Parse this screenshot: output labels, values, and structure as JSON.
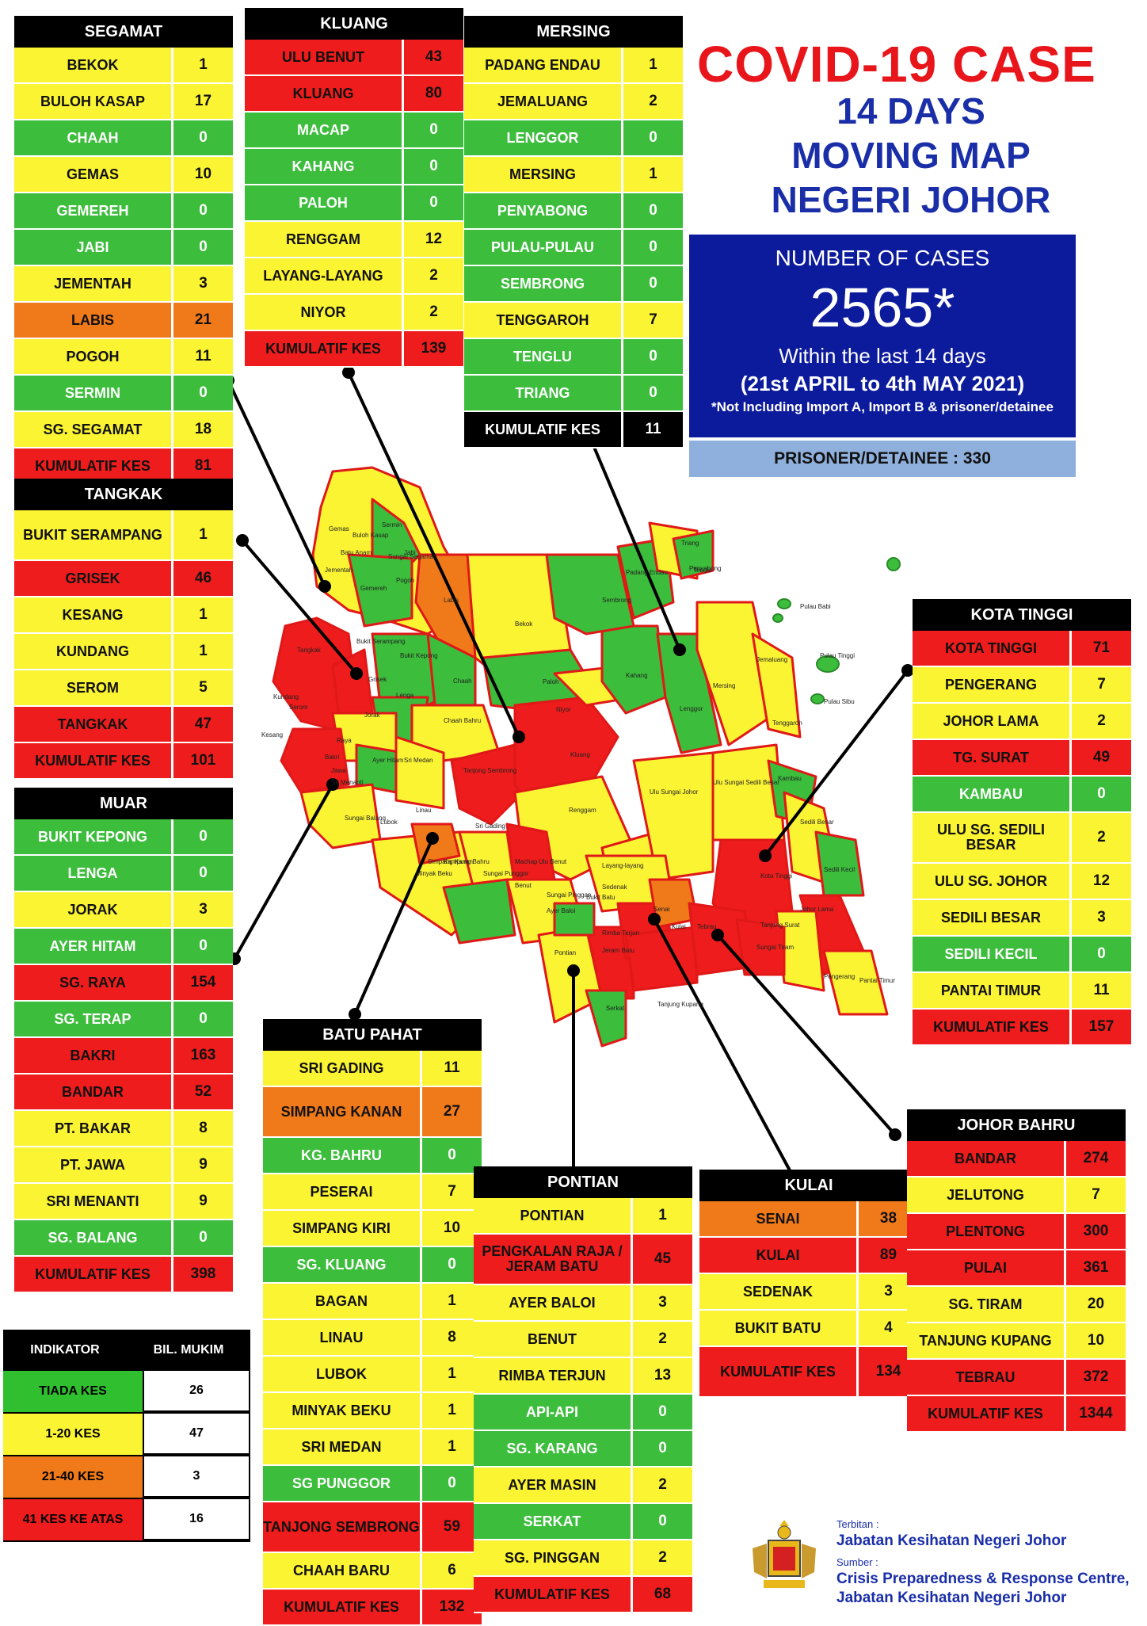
{
  "title": {
    "line1": "COVID-19 CASE",
    "line2": "14 DAYS",
    "line3": "MOVING MAP",
    "line4": "NEGERI JOHOR"
  },
  "summary": {
    "label": "NUMBER OF CASES",
    "total": "2565*",
    "within": "Within the last 14 days",
    "range": "(21st APRIL to 4th MAY 2021)",
    "note": "*Not Including Import A, Import B & prisoner/detainee",
    "prisoner": "PRISONER/DETAINEE : 330"
  },
  "colors": {
    "green": "#3cbd3c",
    "yellow": "#fbf433",
    "orange": "#f07a1a",
    "red": "#ee1c1c",
    "title_red": "#e8151b",
    "title_blue": "#1a2ea8",
    "box_blue": "#0c1a9c"
  },
  "districts": {
    "segamat": {
      "name": "SEGAMAT",
      "rows": [
        {
          "name": "BEKOK",
          "value": "1",
          "level": "yellow"
        },
        {
          "name": "BULOH KASAP",
          "value": "17",
          "level": "yellow"
        },
        {
          "name": "CHAAH",
          "value": "0",
          "level": "green"
        },
        {
          "name": "GEMAS",
          "value": "10",
          "level": "yellow"
        },
        {
          "name": "GEMEREH",
          "value": "0",
          "level": "green"
        },
        {
          "name": "JABI",
          "value": "0",
          "level": "green"
        },
        {
          "name": "JEMENTAH",
          "value": "3",
          "level": "yellow"
        },
        {
          "name": "LABIS",
          "value": "21",
          "level": "orange"
        },
        {
          "name": "POGOH",
          "value": "11",
          "level": "yellow"
        },
        {
          "name": "SERMIN",
          "value": "0",
          "level": "green"
        },
        {
          "name": "SG. SEGAMAT",
          "value": "18",
          "level": "yellow"
        },
        {
          "name": "KUMULATIF KES",
          "value": "81",
          "level": "red"
        }
      ]
    },
    "kluang": {
      "name": "KLUANG",
      "rows": [
        {
          "name": "ULU BENUT",
          "value": "43",
          "level": "red"
        },
        {
          "name": "KLUANG",
          "value": "80",
          "level": "red"
        },
        {
          "name": "MACAP",
          "value": "0",
          "level": "green"
        },
        {
          "name": "KAHANG",
          "value": "0",
          "level": "green"
        },
        {
          "name": "PALOH",
          "value": "0",
          "level": "green"
        },
        {
          "name": "RENGGAM",
          "value": "12",
          "level": "yellow"
        },
        {
          "name": "LAYANG-LAYANG",
          "value": "2",
          "level": "yellow"
        },
        {
          "name": "NIYOR",
          "value": "2",
          "level": "yellow"
        },
        {
          "name": "KUMULATIF KES",
          "value": "139",
          "level": "red"
        }
      ]
    },
    "mersing": {
      "name": "MERSING",
      "rows": [
        {
          "name": "PADANG ENDAU",
          "value": "1",
          "level": "yellow"
        },
        {
          "name": "JEMALUANG",
          "value": "2",
          "level": "yellow"
        },
        {
          "name": "LENGGOR",
          "value": "0",
          "level": "green"
        },
        {
          "name": "MERSING",
          "value": "1",
          "level": "yellow"
        },
        {
          "name": "PENYABONG",
          "value": "0",
          "level": "green"
        },
        {
          "name": "PULAU-PULAU",
          "value": "0",
          "level": "green"
        },
        {
          "name": "SEMBRONG",
          "value": "0",
          "level": "green"
        },
        {
          "name": "TENGGAROH",
          "value": "7",
          "level": "yellow"
        },
        {
          "name": "TENGLU",
          "value": "0",
          "level": "green"
        },
        {
          "name": "TRIANG",
          "value": "0",
          "level": "green"
        },
        {
          "name": "KUMULATIF KES",
          "value": "11",
          "level": "black"
        }
      ]
    },
    "tangkak": {
      "name": "TANGKAK",
      "rows": [
        {
          "name": "BUKIT SERAMPANG",
          "value": "1",
          "level": "yellow",
          "tall": true
        },
        {
          "name": "GRISEK",
          "value": "46",
          "level": "red"
        },
        {
          "name": "KESANG",
          "value": "1",
          "level": "yellow"
        },
        {
          "name": "KUNDANG",
          "value": "1",
          "level": "yellow"
        },
        {
          "name": "SEROM",
          "value": "5",
          "level": "yellow"
        },
        {
          "name": "TANGKAK",
          "value": "47",
          "level": "red"
        },
        {
          "name": "KUMULATIF KES",
          "value": "101",
          "level": "red"
        }
      ]
    },
    "muar": {
      "name": "MUAR",
      "rows": [
        {
          "name": "BUKIT KEPONG",
          "value": "0",
          "level": "green"
        },
        {
          "name": "LENGA",
          "value": "0",
          "level": "green"
        },
        {
          "name": "JORAK",
          "value": "3",
          "level": "yellow"
        },
        {
          "name": "AYER HITAM",
          "value": "0",
          "level": "green"
        },
        {
          "name": "SG. RAYA",
          "value": "154",
          "level": "red"
        },
        {
          "name": "SG. TERAP",
          "value": "0",
          "level": "green"
        },
        {
          "name": "BAKRI",
          "value": "163",
          "level": "red"
        },
        {
          "name": "BANDAR",
          "value": "52",
          "level": "red"
        },
        {
          "name": "PT. BAKAR",
          "value": "8",
          "level": "yellow"
        },
        {
          "name": "PT. JAWA",
          "value": "9",
          "level": "yellow"
        },
        {
          "name": "SRI MENANTI",
          "value": "9",
          "level": "yellow"
        },
        {
          "name": "SG. BALANG",
          "value": "0",
          "level": "green"
        },
        {
          "name": "KUMULATIF KES",
          "value": "398",
          "level": "red"
        }
      ]
    },
    "kota_tinggi": {
      "name": "KOTA TINGGI",
      "rows": [
        {
          "name": "KOTA TINGGI",
          "value": "71",
          "level": "red"
        },
        {
          "name": "PENGERANG",
          "value": "7",
          "level": "yellow"
        },
        {
          "name": "JOHOR LAMA",
          "value": "2",
          "level": "yellow"
        },
        {
          "name": "TG. SURAT",
          "value": "49",
          "level": "red"
        },
        {
          "name": "KAMBAU",
          "value": "0",
          "level": "green"
        },
        {
          "name": "ULU SG. SEDILI BESAR",
          "value": "2",
          "level": "yellow",
          "tall": true
        },
        {
          "name": "ULU SG. JOHOR",
          "value": "12",
          "level": "yellow"
        },
        {
          "name": "SEDILI BESAR",
          "value": "3",
          "level": "yellow"
        },
        {
          "name": "SEDILI KECIL",
          "value": "0",
          "level": "green"
        },
        {
          "name": "PANTAI TIMUR",
          "value": "11",
          "level": "yellow"
        },
        {
          "name": "KUMULATIF KES",
          "value": "157",
          "level": "red"
        }
      ]
    },
    "batu_pahat": {
      "name": "BATU PAHAT",
      "rows": [
        {
          "name": "SRI GADING",
          "value": "11",
          "level": "yellow"
        },
        {
          "name": "SIMPANG KANAN",
          "value": "27",
          "level": "orange",
          "tall": true
        },
        {
          "name": "KG. BAHRU",
          "value": "0",
          "level": "green"
        },
        {
          "name": "PESERAI",
          "value": "7",
          "level": "yellow"
        },
        {
          "name": "SIMPANG KIRI",
          "value": "10",
          "level": "yellow"
        },
        {
          "name": "SG. KLUANG",
          "value": "0",
          "level": "green"
        },
        {
          "name": "BAGAN",
          "value": "1",
          "level": "yellow"
        },
        {
          "name": "LINAU",
          "value": "8",
          "level": "yellow"
        },
        {
          "name": "LUBOK",
          "value": "1",
          "level": "yellow"
        },
        {
          "name": "MINYAK BEKU",
          "value": "1",
          "level": "yellow"
        },
        {
          "name": "SRI MEDAN",
          "value": "1",
          "level": "yellow"
        },
        {
          "name": "SG PUNGGOR",
          "value": "0",
          "level": "green"
        },
        {
          "name": "TANJONG SEMBRONG",
          "value": "59",
          "level": "red",
          "tall": true
        },
        {
          "name": "CHAAH BARU",
          "value": "6",
          "level": "yellow"
        },
        {
          "name": "KUMULATIF KES",
          "value": "132",
          "level": "red"
        }
      ]
    },
    "pontian": {
      "name": "PONTIAN",
      "rows": [
        {
          "name": "PONTIAN",
          "value": "1",
          "level": "yellow"
        },
        {
          "name": "PENGKALAN RAJA / JERAM BATU",
          "value": "45",
          "level": "red",
          "tall": true
        },
        {
          "name": "AYER BALOI",
          "value": "3",
          "level": "yellow"
        },
        {
          "name": "BENUT",
          "value": "2",
          "level": "yellow"
        },
        {
          "name": "RIMBA TERJUN",
          "value": "13",
          "level": "yellow"
        },
        {
          "name": "API-API",
          "value": "0",
          "level": "green"
        },
        {
          "name": "SG. KARANG",
          "value": "0",
          "level": "green"
        },
        {
          "name": "AYER MASIN",
          "value": "2",
          "level": "yellow"
        },
        {
          "name": "SERKAT",
          "value": "0",
          "level": "green"
        },
        {
          "name": "SG. PINGGAN",
          "value": "2",
          "level": "yellow"
        },
        {
          "name": "KUMULATIF KES",
          "value": "68",
          "level": "red"
        }
      ]
    },
    "kulai": {
      "name": "KULAI",
      "rows": [
        {
          "name": "SENAI",
          "value": "38",
          "level": "orange"
        },
        {
          "name": "KULAI",
          "value": "89",
          "level": "red"
        },
        {
          "name": "SEDENAK",
          "value": "3",
          "level": "yellow"
        },
        {
          "name": "BUKIT BATU",
          "value": "4",
          "level": "yellow"
        },
        {
          "name": "KUMULATIF KES",
          "value": "134",
          "level": "red",
          "tall": true
        }
      ]
    },
    "johor_bahru": {
      "name": "JOHOR BAHRU",
      "rows": [
        {
          "name": "BANDAR",
          "value": "274",
          "level": "red"
        },
        {
          "name": "JELUTONG",
          "value": "7",
          "level": "yellow"
        },
        {
          "name": "PLENTONG",
          "value": "300",
          "level": "red"
        },
        {
          "name": "PULAI",
          "value": "361",
          "level": "red"
        },
        {
          "name": "SG. TIRAM",
          "value": "20",
          "level": "yellow"
        },
        {
          "name": "TANJUNG KUPANG",
          "value": "10",
          "level": "yellow"
        },
        {
          "name": "TEBRAU",
          "value": "372",
          "level": "red"
        },
        {
          "name": "KUMULATIF KES",
          "value": "1344",
          "level": "red"
        }
      ]
    }
  },
  "legend": {
    "col1": "INDIKATOR",
    "col2": "BIL. MUKIM",
    "rows": [
      {
        "label": "TIADA KES",
        "count": "26",
        "level": "green"
      },
      {
        "label": "1-20 KES",
        "count": "47",
        "level": "yellow"
      },
      {
        "label": "21-40 KES",
        "count": "3",
        "level": "orange"
      },
      {
        "label": "41 KES KE ATAS",
        "count": "16",
        "level": "red"
      }
    ]
  },
  "credit": {
    "terbitan_label": "Terbitan :",
    "terbitan": "Jabatan Kesihatan Negeri Johor",
    "sumber_label": "Sumber :",
    "sumber1": "Crisis Preparedness & Response Centre,",
    "sumber2": "Jabatan Kesihatan Negeri Johor"
  },
  "map_labels": [
    "Gemas",
    "Buloh Kasap",
    "Sermin",
    "Jabi",
    "Batu Anam",
    "Sungai Segamat",
    "Jementah",
    "Pogoh",
    "Gemereh",
    "Labis",
    "Bekok",
    "Sembrong",
    "Penyabong",
    "Padang Endau",
    "Triang",
    "Tenglu",
    "Pulau Babi",
    "Tangkak",
    "Bukit Serampang",
    "Bukit Kepong",
    "Grisek",
    "Chaah",
    "Lenga",
    "Jemaluang",
    "Pulau Tinggi",
    "Pulau Sibu",
    "Kundang",
    "Serom",
    "Paloh",
    "Kahang",
    "Mersing",
    "Lenggor",
    "Niyor",
    "Kesang",
    "Jorak",
    "Chaah Bahru",
    "Raya",
    "Ayer Hitam",
    "Sri Medan",
    "Bakri",
    "Tanjong Sembrong",
    "Kluang",
    "Tenggaroh",
    "Jawa",
    "Sri Menanti",
    "Renggam",
    "Ulu Sungai Sedili Besar",
    "Ulu Sungai Johor",
    "Kambau",
    "Sungai Balang",
    "Linau",
    "Lubok",
    "Sri Gading",
    "Sedili Besar",
    "Simpang Kanan",
    "Machap",
    "Minyak Beku",
    "Kampung Bahru",
    "Layang-layang",
    "Sungai Punggor",
    "Ulu Benut",
    "Sedili Kecil",
    "Benut",
    "Sedenak",
    "Kota Tinggi",
    "Sungai Pinggan",
    "Bukit Batu",
    "Senai",
    "Johor Lama",
    "Ayer Baloi",
    "Kulai",
    "Tebrau",
    "Tanjung Surat",
    "Pontian",
    "Rimba Terjun",
    "Sungai Tiram",
    "Jeram Batu",
    "Pengerang",
    "Pantai Timur",
    "Serkat",
    "Tanjung Kupang"
  ]
}
